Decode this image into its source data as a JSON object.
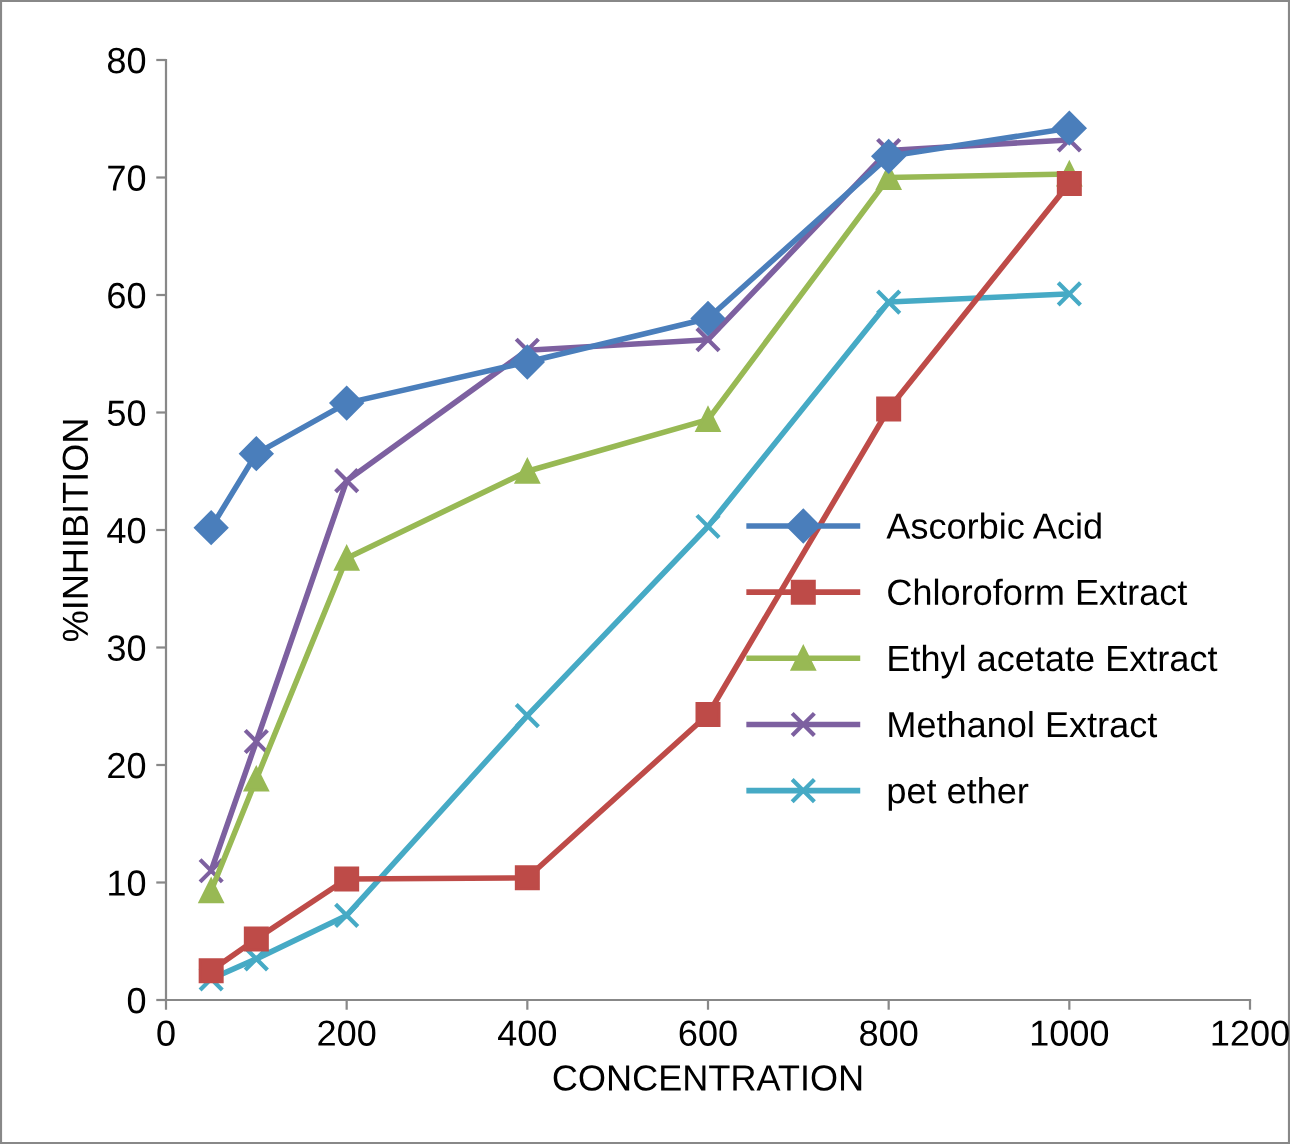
{
  "chart_data": {
    "type": "line",
    "xlabel": "CONCENTRATION",
    "ylabel": "%INHIBITION",
    "x": [
      50,
      100,
      200,
      400,
      600,
      800,
      1000
    ],
    "series": [
      {
        "name": "Ascorbic Acid",
        "color": "#4a7ebb",
        "marker": "diamond",
        "values": [
          40.2,
          46.5,
          50.8,
          54.3,
          58,
          71.8,
          74.2
        ]
      },
      {
        "name": "Chloroform Extract",
        "color": "#be4b48",
        "marker": "square",
        "values": [
          2.5,
          5.2,
          10.3,
          10.4,
          24.3,
          50.3,
          69.5
        ]
      },
      {
        "name": "Ethyl acetate Extract",
        "color": "#98b954",
        "marker": "triangle",
        "values": [
          9.3,
          18.8,
          37.6,
          45,
          49.4,
          70,
          70.3
        ]
      },
      {
        "name": "Methanol Extract",
        "color": "#7d60a0",
        "marker": "cross",
        "values": [
          11,
          22,
          44.2,
          55.3,
          56.2,
          72.3,
          73.2
        ]
      },
      {
        "name": "pet ether",
        "color": "#46aac5",
        "marker": "cross",
        "values": [
          1.8,
          3.5,
          7.2,
          24.2,
          40.3,
          59.4,
          60.1
        ]
      }
    ],
    "xlim": [
      0,
      1200
    ],
    "xticks": [
      0,
      200,
      400,
      600,
      800,
      1000,
      1200
    ],
    "ylim": [
      0,
      80
    ],
    "yticks": [
      0,
      10,
      20,
      30,
      40,
      50,
      60,
      70,
      80
    ],
    "grid": false,
    "legend": "right",
    "line_style": "solid"
  }
}
